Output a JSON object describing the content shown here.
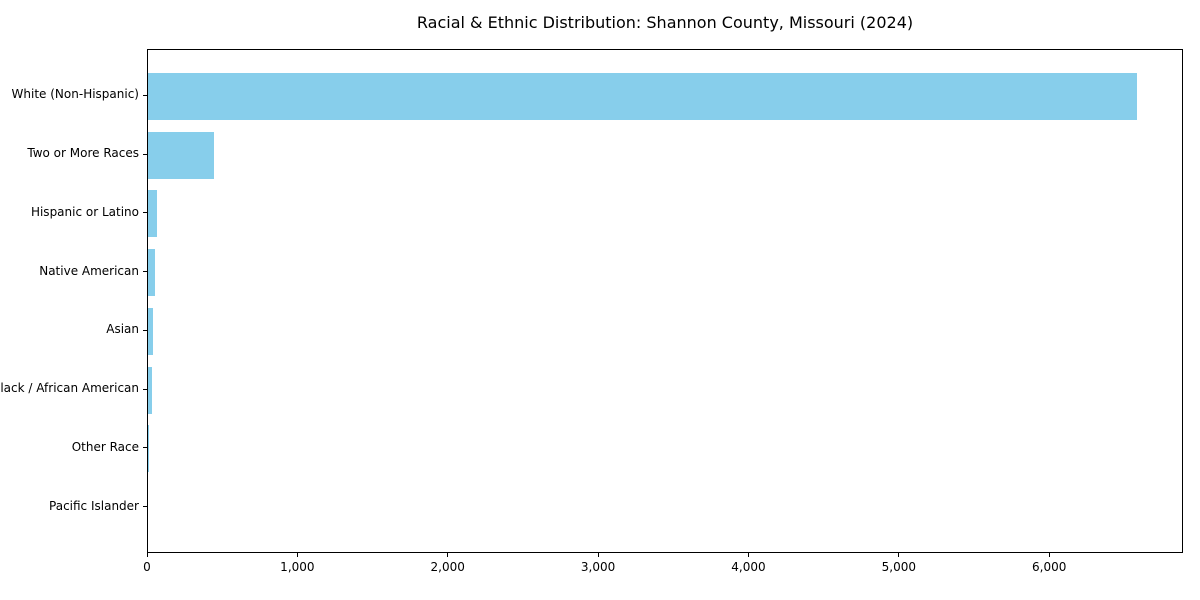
{
  "chart_data": {
    "type": "bar",
    "orientation": "horizontal",
    "title": "Racial & Ethnic Distribution: Shannon County, Missouri (2024)",
    "categories": [
      "White (Non-Hispanic)",
      "Two or More Races",
      "Hispanic or Latino",
      "Native American",
      "Asian",
      "Black / African American",
      "Other Race",
      "Pacific Islander"
    ],
    "values": [
      6580,
      440,
      62,
      48,
      35,
      24,
      7,
      0
    ],
    "xlabel": "",
    "ylabel": "",
    "xlim": [
      0,
      6890
    ],
    "xticks": [
      0,
      1000,
      2000,
      3000,
      4000,
      5000,
      6000
    ],
    "xtick_labels": [
      "0",
      "1,000",
      "2,000",
      "3,000",
      "4,000",
      "5,000",
      "6,000"
    ],
    "bar_color": "#87CEEB",
    "background_color": "#ffffff",
    "text_color": "#000000",
    "grid": false,
    "legend": null
  }
}
